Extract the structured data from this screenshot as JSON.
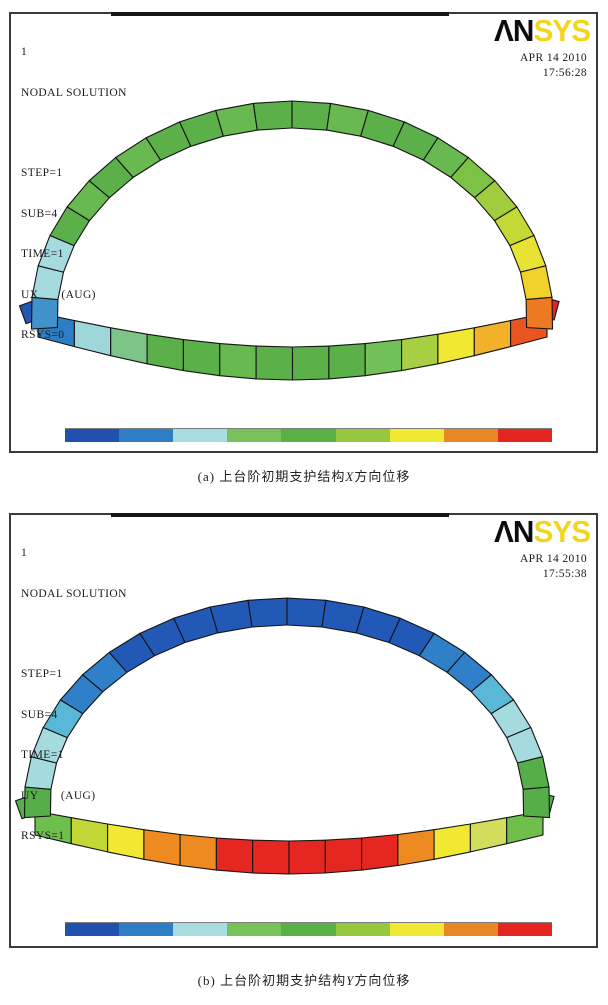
{
  "palette": [
    "#2151ae",
    "#2e7ec5",
    "#a8dce1",
    "#77c159",
    "#58b046",
    "#96c83f",
    "#f0e832",
    "#e78825",
    "#e52520"
  ],
  "panels": [
    {
      "plot_id": "1",
      "title": "NODAL SOLUTION",
      "params": [
        "STEP=1",
        "SUB=4",
        "TIME=1",
        "UX       (AUG)",
        "RSYS=0"
      ],
      "logo_black": "ΛN",
      "logo_yellow": "SYS",
      "date": "APR 14 2010",
      "time": "17:56:28",
      "caption": {
        "prefix": "(a) 上台阶初期支护结构",
        "variable": "X",
        "suffix": "方向位移"
      },
      "arch_colors": [
        "#4191ca",
        "#a5dade",
        "#a5dade",
        "#5cb04a",
        "#68b94f",
        "#5cb04a",
        "#68b94f",
        "#5cb04a",
        "#5cb04a",
        "#68b94f",
        "#5cb04a",
        "#5cb04a",
        "#68b94f",
        "#5cb04a",
        "#5cb04a",
        "#68b94f",
        "#7cc244",
        "#a0cc3e",
        "#c4d836",
        "#e8e235",
        "#f0d22a",
        "#ed7a20"
      ],
      "invert_colors": [
        "#2e7ec5",
        "#9fd6dc",
        "#7cc487",
        "#5cb04a",
        "#5cb04a",
        "#68b94f",
        "#5cb04a",
        "#5cb04a",
        "#5cb04a",
        "#72c058",
        "#a8ce44",
        "#f0e832",
        "#f3b02a",
        "#e8551e"
      ],
      "corner_left": "#2456b4",
      "corner_right": "#e52520"
    },
    {
      "plot_id": "1",
      "title": "NODAL SOLUTION",
      "params": [
        "STEP=1",
        "SUB=4",
        "TIME=1",
        "UY       (AUG)",
        "RSYS=1"
      ],
      "logo_black": "ΛN",
      "logo_yellow": "SYS",
      "date": "APR 14 2010",
      "time": "17:55:38",
      "caption": {
        "prefix": "(b) 上台阶初期支护结构",
        "variable": "Y",
        "suffix": "方向位移"
      },
      "arch_colors": [
        "#56ae4a",
        "#a5dade",
        "#a5dade",
        "#59b8d8",
        "#2f80c8",
        "#2f80c8",
        "#2258b6",
        "#2258b6",
        "#2258b6",
        "#2258b6",
        "#2258b6",
        "#2258b6",
        "#2258b6",
        "#2258b6",
        "#2258b6",
        "#2f80c8",
        "#2f80c8",
        "#59b8d8",
        "#a5dade",
        "#a5dade",
        "#56ae4a",
        "#56ae4a"
      ],
      "invert_colors": [
        "#6fbf4c",
        "#c2d735",
        "#f0e832",
        "#ed8a20",
        "#ed8a20",
        "#e62621",
        "#e62621",
        "#e62621",
        "#e62621",
        "#e62621",
        "#ed8a20",
        "#f0e832",
        "#d2dd5e",
        "#6fbf4c"
      ],
      "corner_left": "#56ae4a",
      "corner_right": "#56ae4a"
    }
  ]
}
